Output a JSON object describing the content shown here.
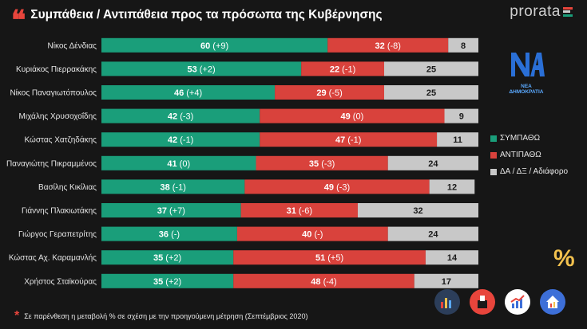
{
  "header": {
    "quote_mark": "❝",
    "title": "Συμπάθεια / Αντιπάθεια προς τα πρόσωπα της Κυβέρνησης",
    "brand": "prorata"
  },
  "party_logo": {
    "mark": "ΝΔ",
    "text": "ΝΕΑ ΔΗΜΟΚΡΑΤΙΑ"
  },
  "legend": [
    {
      "label": "ΣΥΜΠΑΘΩ",
      "color": "#1a9e7a"
    },
    {
      "label": "ΑΝΤΙΠΑΘΩ",
      "color": "#d9423c"
    },
    {
      "label": "ΔΑ / ΔΞ / Αδιάφορο",
      "color": "#c8c8c8"
    }
  ],
  "footnote": {
    "star": "*",
    "text": "Σε παρένθεση η μεταβολή % σε σχέση με την προηγούμενη μέτρηση (Σεπτέμβριος 2020)"
  },
  "percent_symbol": "%",
  "icons": [
    {
      "name": "bar-chart-icon",
      "color": "#2c3e5a"
    },
    {
      "name": "ballot-box-icon",
      "color": "#e8453c"
    },
    {
      "name": "trend-up-icon",
      "color": "#ffffff"
    },
    {
      "name": "home-chart-icon",
      "color": "#3d6fd8"
    }
  ],
  "chart_data": {
    "type": "bar",
    "orientation": "horizontal",
    "stacked": true,
    "xlim": [
      0,
      100
    ],
    "categories": [
      "Νίκος Δένδιας",
      "Κυριάκος Πιερρακάκης",
      "Νίκος Παναγιωτόπουλος",
      "Μιχάλης Χρυσοχοΐδης",
      "Κώστας Χατζηδάκης",
      "Παναγιώτης Πικραμμένος",
      "Βασίλης Κικίλιας",
      "Γιάννης Πλακιωτάκης",
      "Γιώργος Γεραπετρίτης",
      "Κώστας Αχ. Καραμανλής",
      "Χρήστος Σταϊκούρας"
    ],
    "series": [
      {
        "name": "ΣΥΜΠΑΘΩ",
        "color": "#1a9e7a",
        "values": [
          60,
          53,
          46,
          42,
          42,
          41,
          38,
          37,
          36,
          35,
          35
        ],
        "changes": [
          "(+9)",
          "(+2)",
          "(+4)",
          "(-3)",
          "(-1)",
          "(0)",
          "(-1)",
          "(+7)",
          "(-)",
          "(+2)",
          "(+2)"
        ]
      },
      {
        "name": "ΑΝΤΙΠΑΘΩ",
        "color": "#d9423c",
        "values": [
          32,
          22,
          29,
          49,
          47,
          35,
          49,
          31,
          40,
          51,
          48
        ],
        "changes": [
          "(-8)",
          "(-1)",
          "(-5)",
          "(0)",
          "(-1)",
          "(-3)",
          "(-3)",
          "(-6)",
          "(-)",
          "(+5)",
          "(-4)"
        ]
      },
      {
        "name": "ΔΑ / ΔΞ / Αδιάφορο",
        "color": "#c8c8c8",
        "values": [
          8,
          25,
          25,
          9,
          11,
          24,
          12,
          32,
          24,
          14,
          17
        ],
        "changes": [
          "",
          "",
          "",
          "",
          "",
          "",
          "",
          "",
          "",
          "",
          ""
        ]
      }
    ]
  }
}
